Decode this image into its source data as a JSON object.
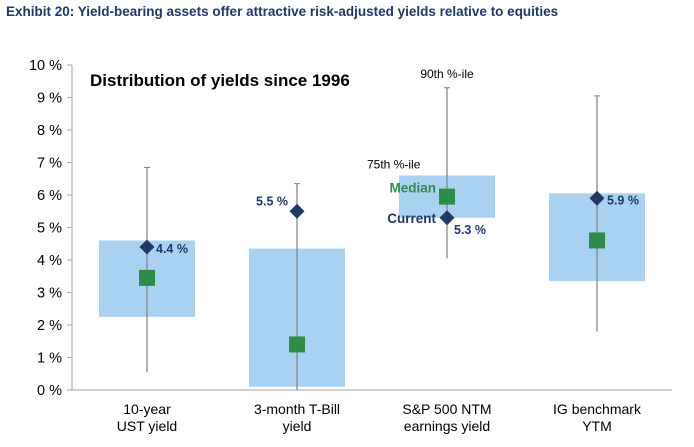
{
  "exhibit_title": "Exhibit 20: Yield-bearing assets offer attractive risk-adjusted yields relative to equities",
  "chart_data": {
    "type": "box",
    "title": "Distribution of yields since 1996",
    "ylim": [
      0,
      10
    ],
    "yticks": [
      "0 %",
      "1 %",
      "2 %",
      "3 %",
      "4 %",
      "5 %",
      "6 %",
      "7 %",
      "8 %",
      "9 %",
      "10 %"
    ],
    "categories": [
      [
        "10-year",
        "UST yield"
      ],
      [
        "3-month T-Bill",
        "yield"
      ],
      [
        "S&P 500 NTM",
        "earnings yield"
      ],
      [
        "IG benchmark",
        "YTM"
      ]
    ],
    "series": [
      {
        "low": 0.55,
        "q25": 2.25,
        "q75": 4.6,
        "high": 6.85,
        "median": 3.45,
        "current": 4.4,
        "current_label": "4.4 %"
      },
      {
        "low": 0.0,
        "q25": 0.1,
        "q75": 4.35,
        "high": 6.35,
        "median": 1.4,
        "current": 5.5,
        "current_label": "5.5 %"
      },
      {
        "low": 4.05,
        "q25": 5.3,
        "q75": 6.6,
        "high": 9.3,
        "median": 5.95,
        "current": 5.3,
        "current_label": "5.3 %"
      },
      {
        "low": 1.8,
        "q25": 3.35,
        "q75": 6.05,
        "high": 9.05,
        "median": 4.6,
        "current": 5.9,
        "current_label": "5.9 %"
      }
    ],
    "annotations": {
      "p90": "90th %-ile",
      "p75": "75th %-ile",
      "median": "Median",
      "current": "Current"
    },
    "colors": {
      "box": "#a9d1f1",
      "whisker": "#7f7f7f",
      "median": "#2e8b4a",
      "current": "#1f3864",
      "axis": "#a6a6a6",
      "median_text": "#2e8b4a",
      "current_text": "#1f3864"
    }
  }
}
